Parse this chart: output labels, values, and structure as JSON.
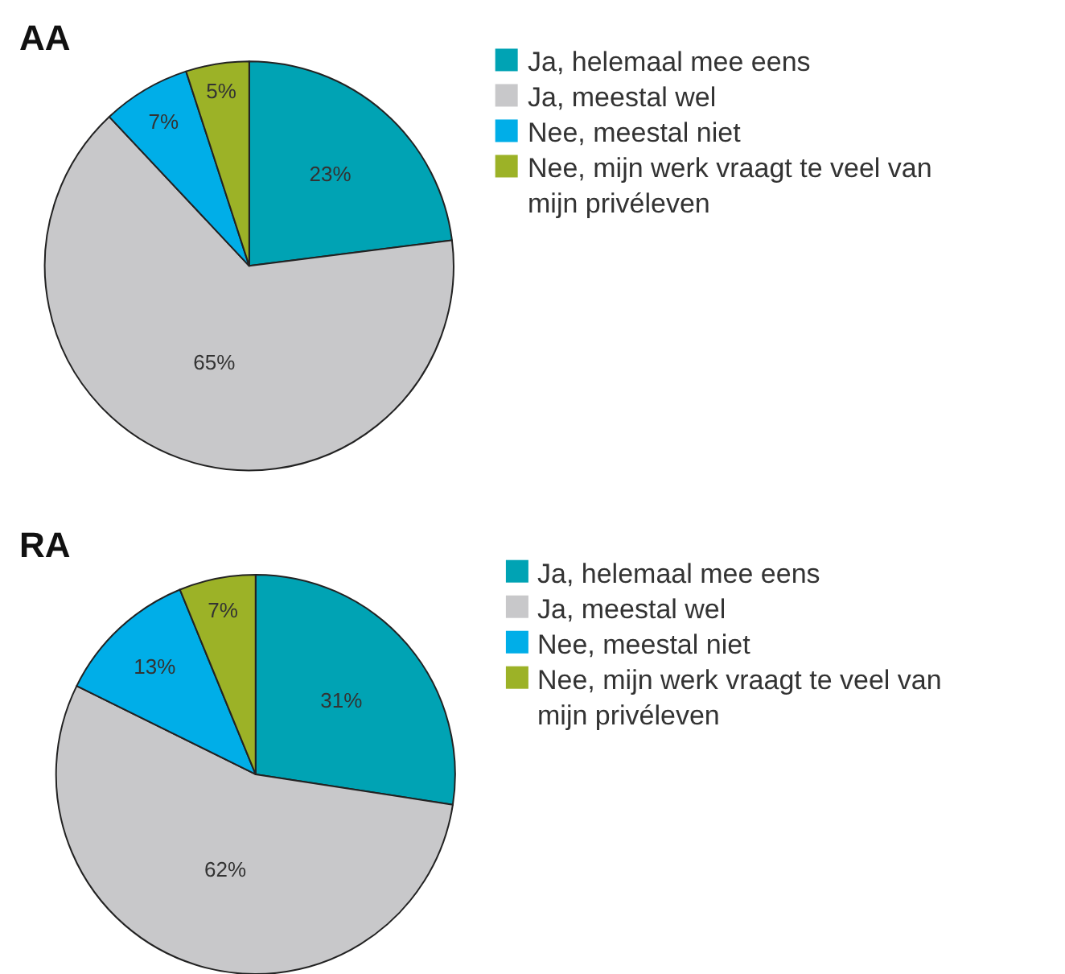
{
  "chart_data": [
    {
      "type": "pie",
      "title": "AA",
      "categories": [
        "Ja, helemaal mee eens",
        "Ja, meestal wel",
        "Nee, meestal niet",
        "Nee, mijn werk vraagt te veel van mijn privéleven"
      ],
      "values": [
        23,
        65,
        7,
        5
      ],
      "colors": [
        "#00a3b4",
        "#c8c8ca",
        "#00aee8",
        "#9cb227"
      ],
      "value_labels": [
        "23%",
        "65%",
        "7%",
        "5%"
      ],
      "legend": "right"
    },
    {
      "type": "pie",
      "title": "RA",
      "categories": [
        "Ja, helemaal mee eens",
        "Ja, meestal wel",
        "Nee, meestal niet",
        "Nee, mijn werk vraagt te veel van mijn privéleven"
      ],
      "values": [
        31,
        62,
        13,
        7
      ],
      "colors": [
        "#00a3b4",
        "#c8c8ca",
        "#00aee8",
        "#9cb227"
      ],
      "value_labels": [
        "31%",
        "62%",
        "13%",
        "7%"
      ],
      "legend": "right"
    }
  ]
}
